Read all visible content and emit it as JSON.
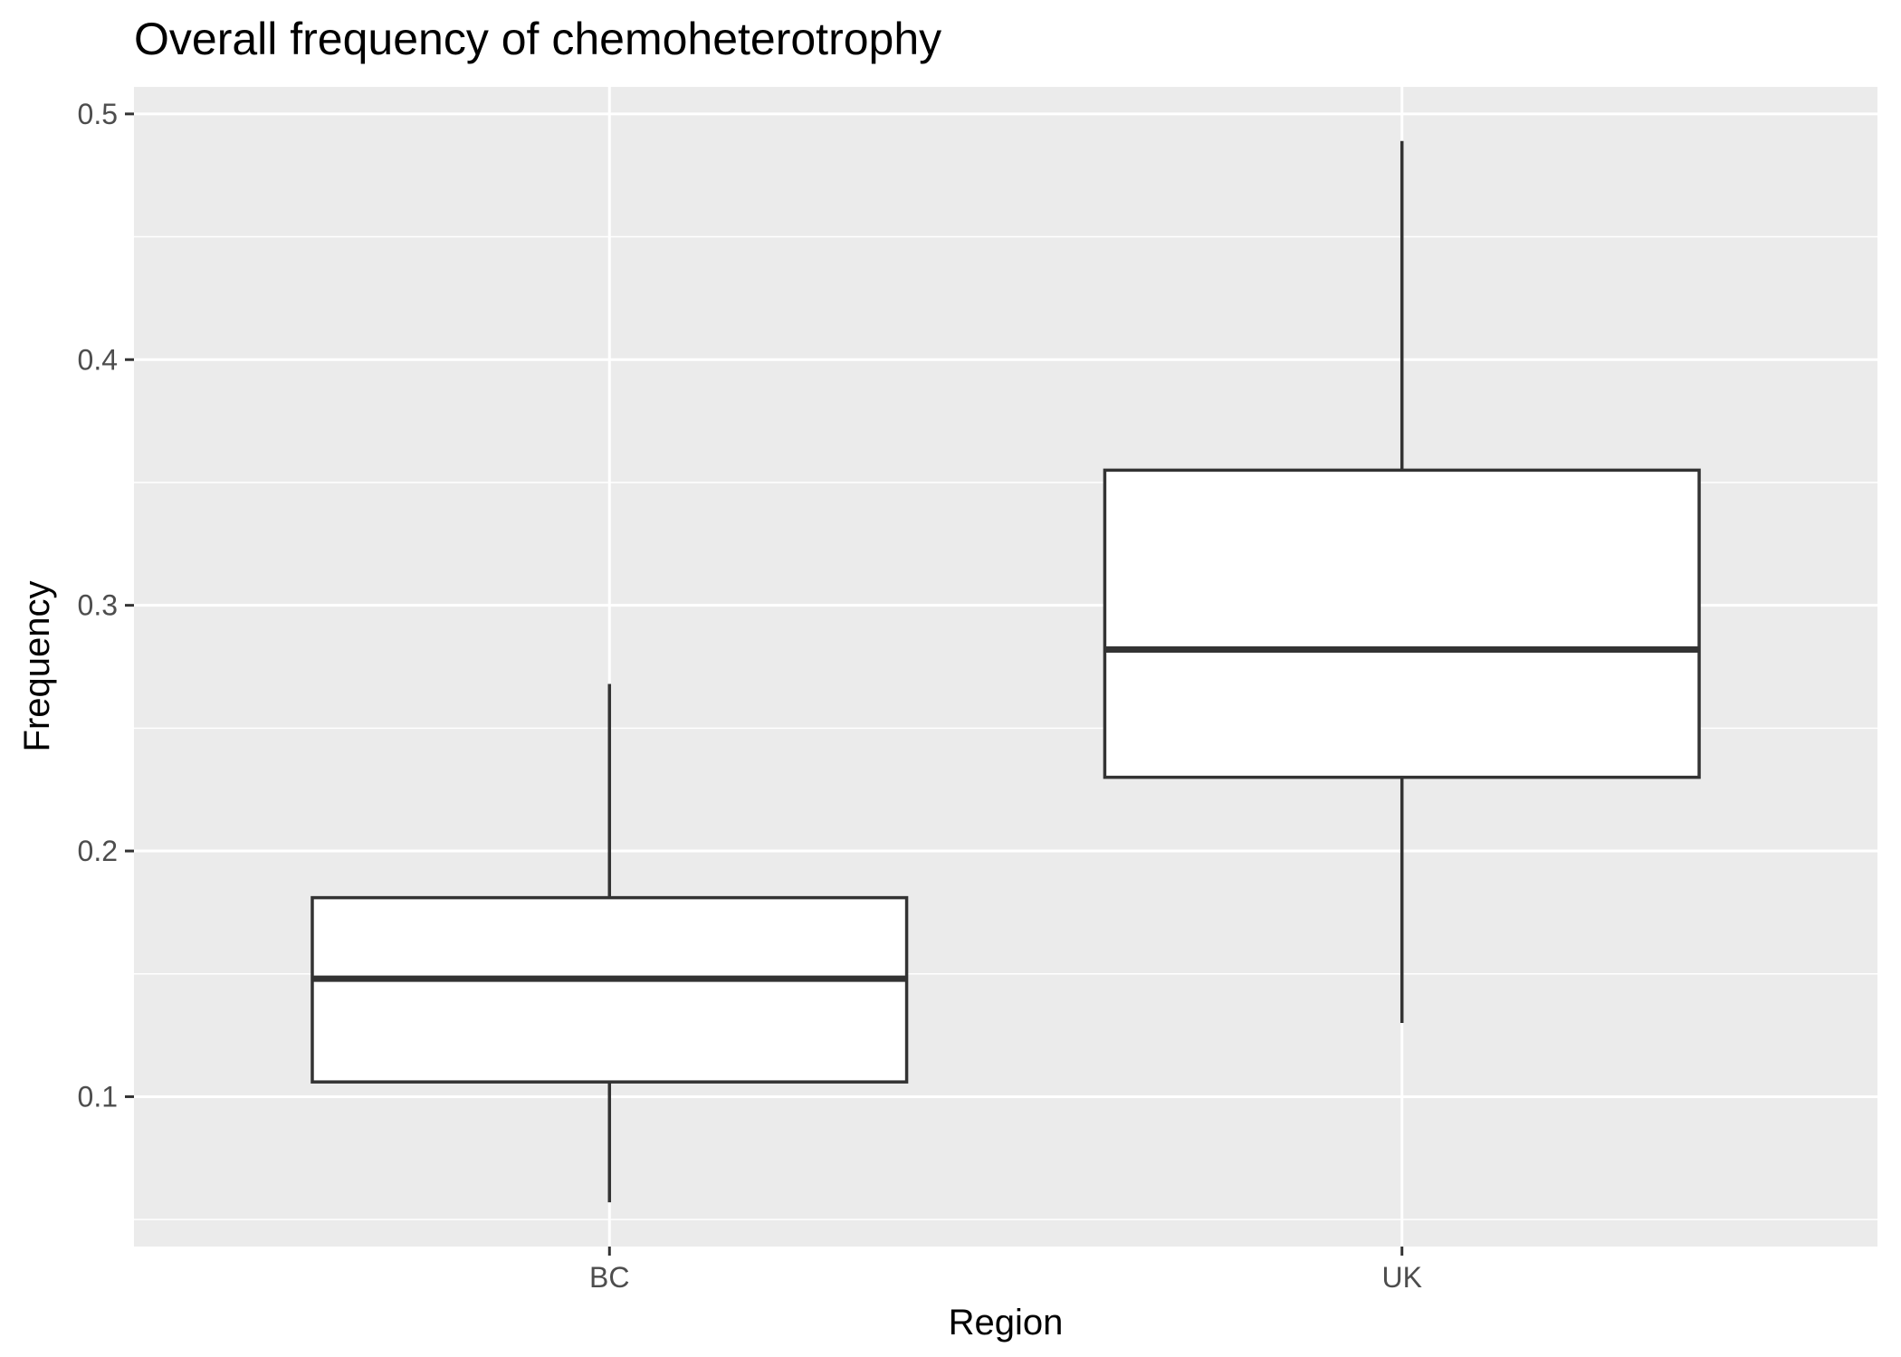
{
  "chart_data": {
    "type": "boxplot",
    "title": "Overall frequency of chemoheterotrophy",
    "xlabel": "Region",
    "ylabel": "Frequency",
    "categories": [
      "BC",
      "UK"
    ],
    "boxes": [
      {
        "category": "BC",
        "whisker_low": 0.057,
        "q1": 0.106,
        "median": 0.148,
        "q3": 0.181,
        "whisker_high": 0.268
      },
      {
        "category": "UK",
        "whisker_low": 0.13,
        "q1": 0.23,
        "median": 0.282,
        "q3": 0.355,
        "whisker_high": 0.489
      }
    ],
    "ylim": [
      0.039,
      0.511
    ],
    "yticks": [
      {
        "value": 0.1,
        "label": "0.1"
      },
      {
        "value": 0.2,
        "label": "0.2"
      },
      {
        "value": 0.3,
        "label": "0.3"
      },
      {
        "value": 0.4,
        "label": "0.4"
      },
      {
        "value": 0.5,
        "label": "0.5"
      }
    ],
    "y_minor_ticks": [
      0.05,
      0.15,
      0.25,
      0.35,
      0.45
    ],
    "grid": true,
    "colors": {
      "panel_background": "#ebebeb",
      "grid": "#ffffff",
      "box_fill": "#ffffff",
      "box_stroke": "#333333",
      "tick_mark": "#333333"
    }
  }
}
